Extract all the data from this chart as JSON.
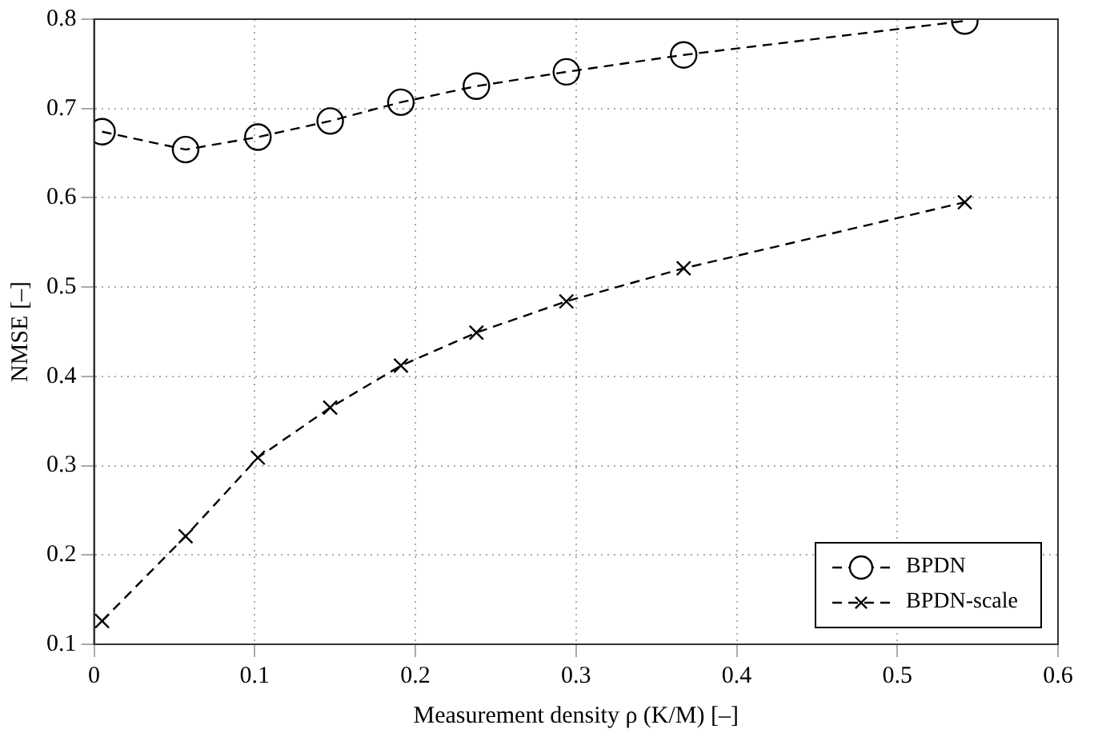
{
  "chart_data": {
    "type": "line",
    "xlabel": "Measurement density ρ (K/M) [–]",
    "ylabel": "NMSE [–]",
    "x": [
      0.005,
      0.057,
      0.102,
      0.147,
      0.191,
      0.238,
      0.294,
      0.367,
      0.542
    ],
    "series": [
      {
        "name": "BPDN",
        "color": "#000000",
        "marker": "circle",
        "values": [
          0.674,
          0.654,
          0.668,
          0.686,
          0.707,
          0.725,
          0.741,
          0.76,
          0.798
        ]
      },
      {
        "name": "BPDN-scale",
        "color": "#000000",
        "marker": "cross",
        "values": [
          0.126,
          0.221,
          0.309,
          0.365,
          0.412,
          0.449,
          0.484,
          0.521,
          0.595
        ]
      }
    ],
    "xlim": [
      0,
      0.6
    ],
    "xticks": [
      0,
      0.1,
      0.2,
      0.3,
      0.4,
      0.5,
      0.6
    ],
    "ylim": [
      0.1,
      0.8
    ],
    "yticks": [
      0.1,
      0.2,
      0.3,
      0.4,
      0.5,
      0.6,
      0.7,
      0.8
    ],
    "grid": true,
    "legend": "bottom right",
    "line_style": "dashed"
  }
}
